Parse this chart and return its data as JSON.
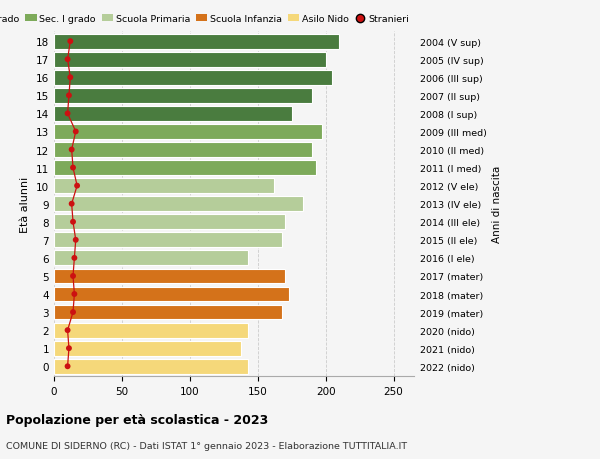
{
  "ages": [
    18,
    17,
    16,
    15,
    14,
    13,
    12,
    11,
    10,
    9,
    8,
    7,
    6,
    5,
    4,
    3,
    2,
    1,
    0
  ],
  "values": [
    210,
    200,
    205,
    190,
    175,
    197,
    190,
    193,
    162,
    183,
    170,
    168,
    143,
    170,
    173,
    168,
    143,
    138,
    143
  ],
  "stranieri": [
    12,
    10,
    12,
    11,
    10,
    16,
    13,
    14,
    17,
    13,
    14,
    16,
    15,
    14,
    15,
    14,
    10,
    11,
    10
  ],
  "bar_colors": [
    "#4a7c3f",
    "#4a7c3f",
    "#4a7c3f",
    "#4a7c3f",
    "#4a7c3f",
    "#7daa5a",
    "#7daa5a",
    "#7daa5a",
    "#b5cd9a",
    "#b5cd9a",
    "#b5cd9a",
    "#b5cd9a",
    "#b5cd9a",
    "#d4721a",
    "#d4721a",
    "#d4721a",
    "#f5d87a",
    "#f5d87a",
    "#f5d87a"
  ],
  "right_labels": [
    "2004 (V sup)",
    "2005 (IV sup)",
    "2006 (III sup)",
    "2007 (II sup)",
    "2008 (I sup)",
    "2009 (III med)",
    "2010 (II med)",
    "2011 (I med)",
    "2012 (V ele)",
    "2013 (IV ele)",
    "2014 (III ele)",
    "2015 (II ele)",
    "2016 (I ele)",
    "2017 (mater)",
    "2018 (mater)",
    "2019 (mater)",
    "2020 (nido)",
    "2021 (nido)",
    "2022 (nido)"
  ],
  "legend_labels": [
    "Sec. II grado",
    "Sec. I grado",
    "Scuola Primaria",
    "Scuola Infanzia",
    "Asilo Nido",
    "Stranieri"
  ],
  "legend_colors": [
    "#4a7c3f",
    "#7daa5a",
    "#b5cd9a",
    "#d4721a",
    "#f5d87a",
    "#cc1111"
  ],
  "ylabel": "Età alunni",
  "ylabel_right": "Anni di nascita",
  "title": "Popolazione per età scolastica - 2023",
  "subtitle": "COMUNE DI SIDERNO (RC) - Dati ISTAT 1° gennaio 2023 - Elaborazione TUTTITALIA.IT",
  "xlim": [
    0,
    265
  ],
  "background_color": "#f5f5f5",
  "grid_color": "#cccccc",
  "stranieri_color": "#cc1111",
  "bar_height": 0.82
}
